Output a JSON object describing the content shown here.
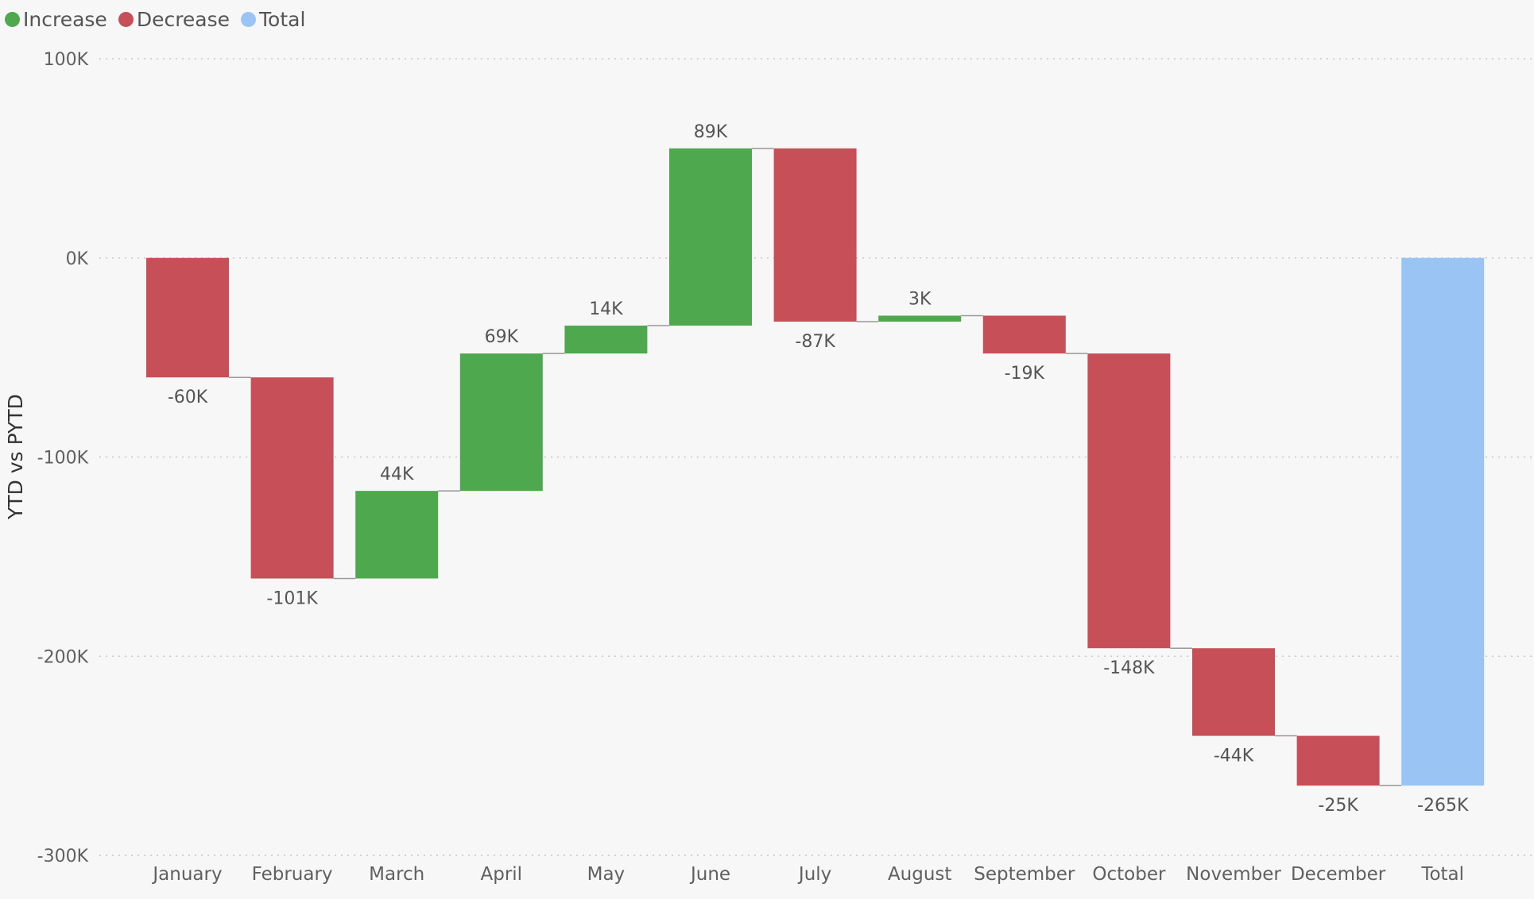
{
  "legend": {
    "items": [
      {
        "label": "Increase",
        "color": "#4ea94e"
      },
      {
        "label": "Decrease",
        "color": "#c64f58"
      },
      {
        "label": "Total",
        "color": "#9ac4f3"
      }
    ]
  },
  "chart_data": {
    "type": "waterfall",
    "ylabel": "YTD vs PYTD",
    "ylim": [
      -300000,
      100000
    ],
    "yticks": [
      {
        "value": 100000,
        "label": "100K"
      },
      {
        "value": 0,
        "label": "0K"
      },
      {
        "value": -100000,
        "label": "-100K"
      },
      {
        "value": -200000,
        "label": "-200K"
      },
      {
        "value": -300000,
        "label": "-300K"
      }
    ],
    "grid": true,
    "legend_position": "top-left",
    "colors": {
      "increase": "#4ea94e",
      "decrease": "#c64f58",
      "total": "#9ac4f3",
      "connector": "#999999",
      "grid": "#c8c8c8"
    },
    "categories": [
      "January",
      "February",
      "March",
      "April",
      "May",
      "June",
      "July",
      "August",
      "September",
      "October",
      "November",
      "December",
      "Total"
    ],
    "values": [
      -60000,
      -101000,
      44000,
      69000,
      14000,
      89000,
      -87000,
      3000,
      -19000,
      -148000,
      -44000,
      -25000,
      -265000
    ],
    "data_labels": [
      "-60K",
      "-101K",
      "44K",
      "69K",
      "14K",
      "89K",
      "-87K",
      "3K",
      "-19K",
      "-148K",
      "-44K",
      "-25K",
      "-265K"
    ],
    "kinds": [
      "decrease",
      "decrease",
      "increase",
      "increase",
      "increase",
      "increase",
      "decrease",
      "increase",
      "decrease",
      "decrease",
      "decrease",
      "decrease",
      "total"
    ]
  }
}
